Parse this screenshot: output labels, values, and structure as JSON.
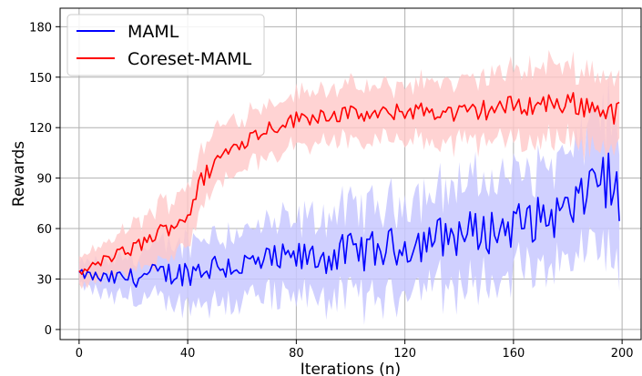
{
  "chart_data": {
    "type": "line",
    "title": "",
    "xlabel": "Iterations (n)",
    "ylabel": "Rewards",
    "xlim": [
      -7,
      207
    ],
    "ylim": [
      -6,
      191
    ],
    "xticks": [
      0,
      40,
      80,
      120,
      160,
      200
    ],
    "yticks": [
      0,
      30,
      60,
      90,
      120,
      150,
      180
    ],
    "grid": true,
    "legend_position": "top-left",
    "series": [
      {
        "name": "MAML",
        "color": "#0000ff",
        "band_color": "#c8c8ff",
        "anchors_x": [
          0,
          10,
          20,
          30,
          40,
          50,
          60,
          70,
          80,
          90,
          100,
          110,
          120,
          130,
          140,
          150,
          160,
          170,
          180,
          185,
          190,
          195,
          200
        ],
        "anchors_mean": [
          33,
          30,
          31,
          33,
          34,
          38,
          38,
          40,
          42,
          43,
          46,
          47,
          50,
          54,
          57,
          58,
          62,
          66,
          70,
          75,
          95,
          88,
          74
        ],
        "anchors_band": [
          6,
          10,
          13,
          16,
          18,
          20,
          20,
          22,
          22,
          24,
          26,
          26,
          27,
          28,
          30,
          30,
          30,
          30,
          32,
          33,
          40,
          38,
          36
        ]
      },
      {
        "name": "Coreset-MAML",
        "color": "#ff0000",
        "band_color": "#ffc8c8",
        "anchors_x": [
          0,
          10,
          20,
          30,
          40,
          45,
          50,
          60,
          70,
          80,
          90,
          100,
          110,
          120,
          130,
          140,
          150,
          160,
          170,
          180,
          190,
          200
        ],
        "anchors_mean": [
          33,
          42,
          48,
          58,
          68,
          88,
          100,
          112,
          120,
          125,
          128,
          128,
          127,
          130,
          130,
          128,
          131,
          133,
          134,
          135,
          132,
          128
        ],
        "anchors_band": [
          8,
          10,
          14,
          16,
          18,
          18,
          18,
          16,
          15,
          15,
          16,
          16,
          16,
          16,
          18,
          18,
          20,
          20,
          22,
          22,
          22,
          22
        ]
      }
    ]
  }
}
